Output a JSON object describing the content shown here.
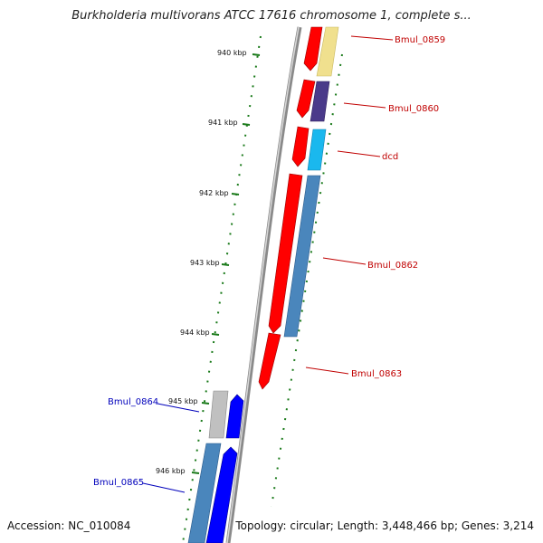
{
  "title": "Burkholderia multivorans ATCC 17616 chromosome 1, complete s...",
  "footer": {
    "accession": "Accession: NC_010084",
    "summary": "Topology: circular; Length: 3,448,466 bp; Genes: 3,214"
  },
  "ticks": [
    "940 kbp",
    "941 kbp",
    "942 kbp",
    "943 kbp",
    "944 kbp",
    "945 kbp",
    "946 kbp"
  ],
  "genes": [
    {
      "name": "Bmul_0859",
      "strand": "forward",
      "color": "#f0e08e"
    },
    {
      "name": "Bmul_0860",
      "strand": "forward",
      "color": "#4a3a8a"
    },
    {
      "name": "dcd",
      "strand": "forward",
      "color": "#1ab8ee"
    },
    {
      "name": "Bmul_0862",
      "strand": "forward",
      "color": "#4a86bc"
    },
    {
      "name": "Bmul_0863",
      "strand": "forward",
      "color": "#ff0000"
    },
    {
      "name": "Bmul_0864",
      "strand": "reverse",
      "color": "#c0c0c0"
    },
    {
      "name": "Bmul_0865",
      "strand": "reverse",
      "color": "#4a86bc"
    }
  ],
  "colors": {
    "forward_label": "#c00000",
    "reverse_label": "#0000bb",
    "tick": "#1a7a1a",
    "backbone": "#888888"
  }
}
